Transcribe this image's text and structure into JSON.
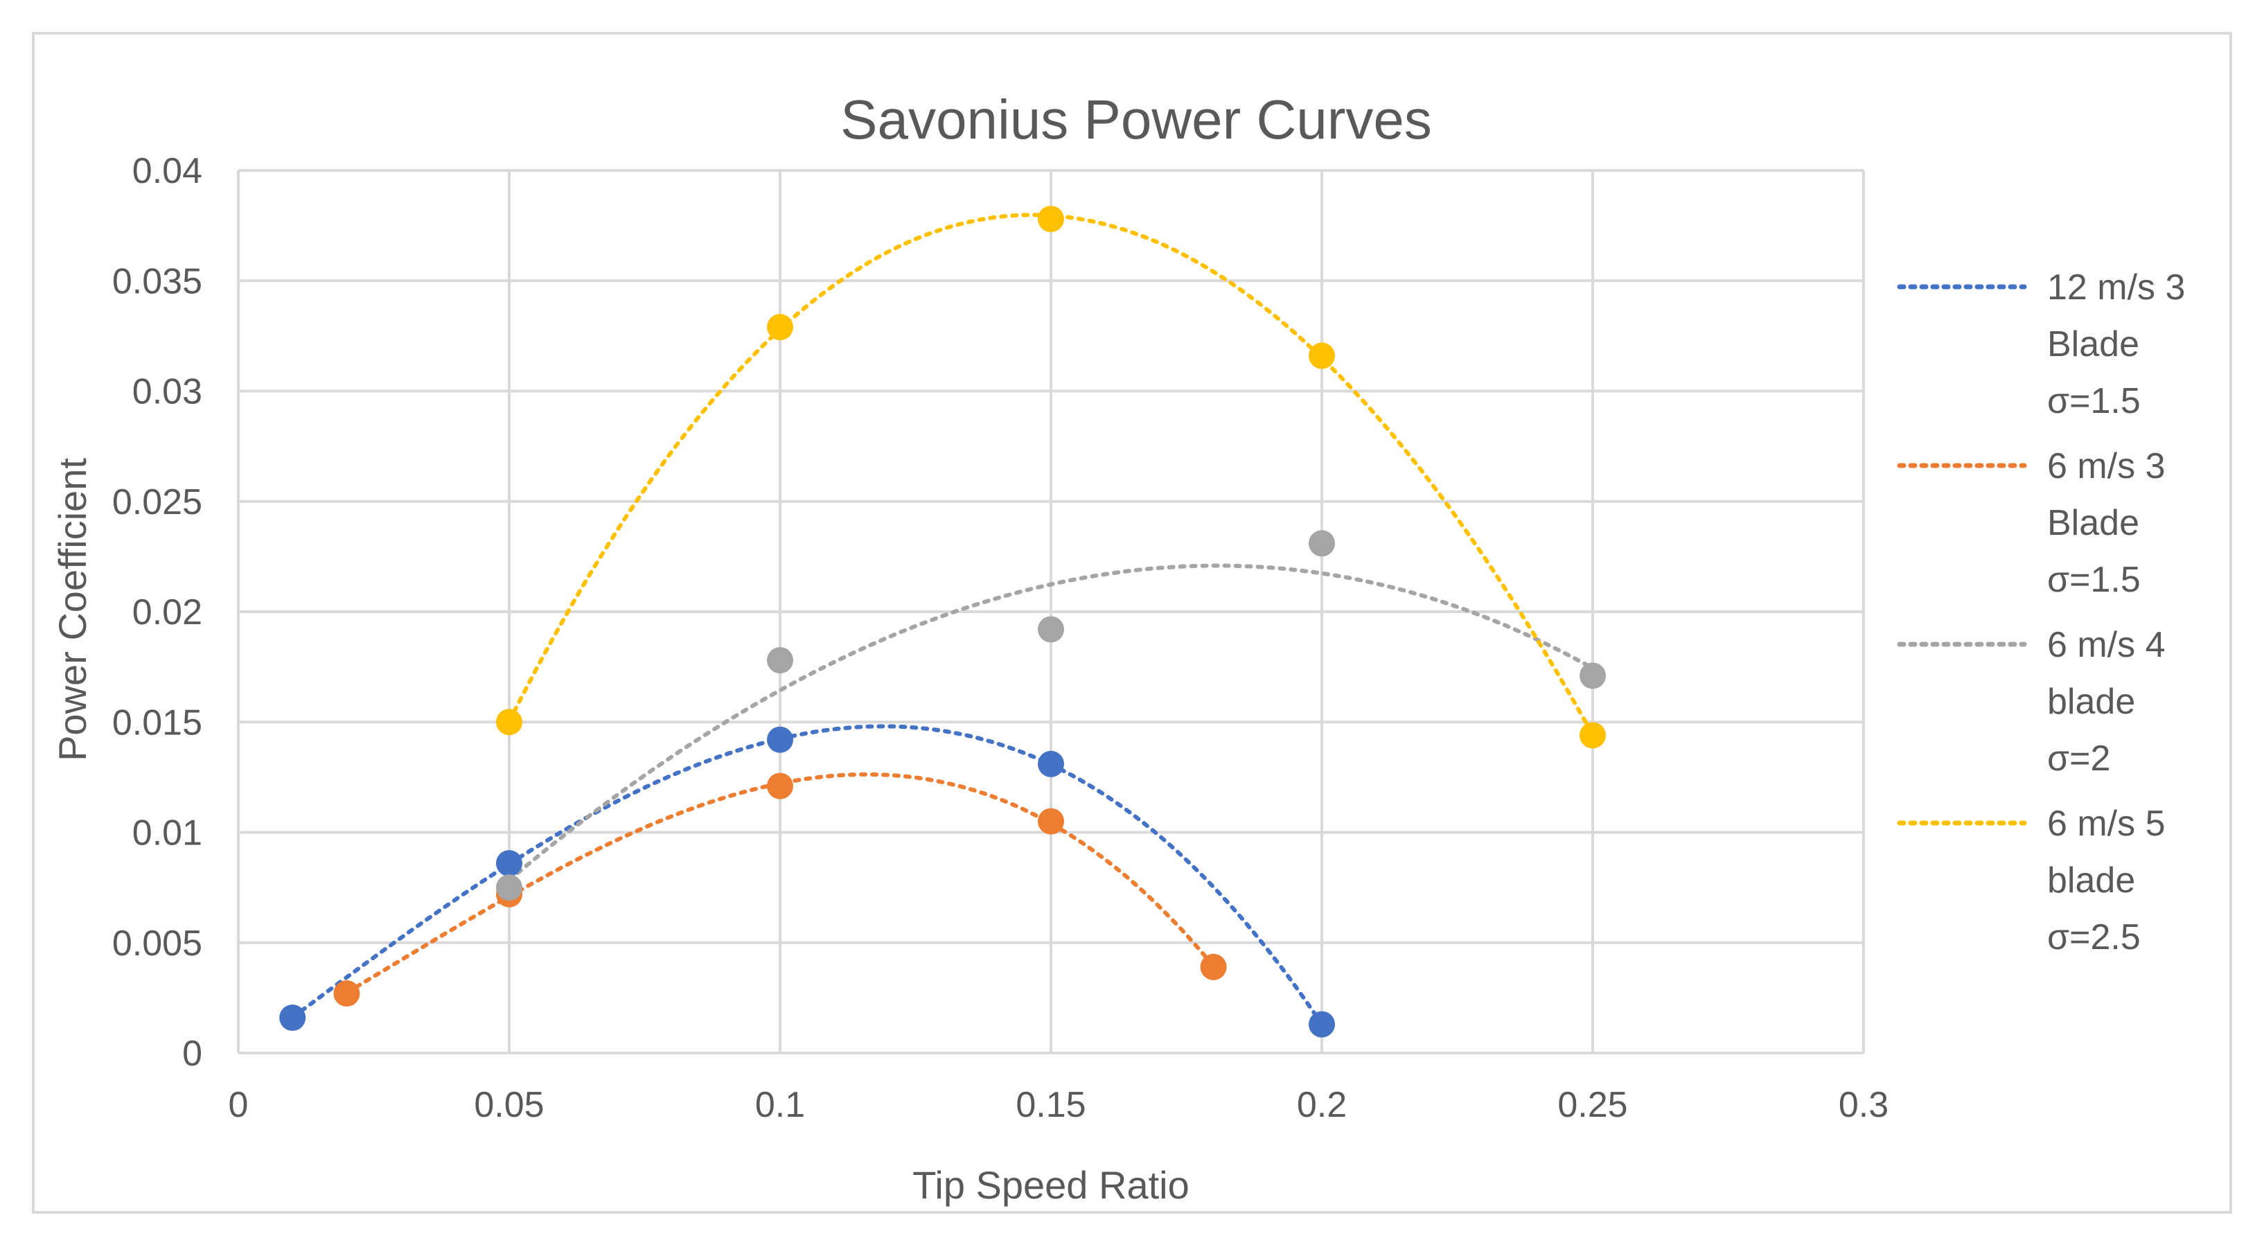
{
  "chart_data": {
    "type": "scatter",
    "title": "Savonius Power Curves",
    "xlabel": "Tip Speed Ratio",
    "ylabel": "Power Coefficient",
    "xlim": [
      0,
      0.3
    ],
    "ylim": [
      0,
      0.04
    ],
    "x_ticks": [
      0,
      0.05,
      0.1,
      0.15,
      0.2,
      0.25,
      0.3
    ],
    "x_tick_labels": [
      "0",
      "0.05",
      "0.1",
      "0.15",
      "0.2",
      "0.25",
      "0.3"
    ],
    "y_ticks": [
      0,
      0.005,
      0.01,
      0.015,
      0.02,
      0.025,
      0.03,
      0.035,
      0.04
    ],
    "y_tick_labels": [
      "0",
      "0.005",
      "0.01",
      "0.015",
      "0.02",
      "0.025",
      "0.03",
      "0.035",
      "0.04"
    ],
    "grid": true,
    "trendline": "dotted polynomial",
    "legend_position": "right",
    "series": [
      {
        "name": "12 m/s 3 Blade σ=1.5",
        "legend_lines": [
          "12 m/s 3",
          "Blade",
          "σ=1.5"
        ],
        "color": "#4472C4",
        "x": [
          0.01,
          0.05,
          0.1,
          0.15,
          0.2
        ],
        "y": [
          0.0016,
          0.0086,
          0.0142,
          0.0131,
          0.0013
        ]
      },
      {
        "name": "6 m/s 3 Blade σ=1.5",
        "legend_lines": [
          "6 m/s 3",
          "Blade",
          "σ=1.5"
        ],
        "color": "#ED7D31",
        "x": [
          0.02,
          0.05,
          0.1,
          0.15,
          0.18
        ],
        "y": [
          0.0027,
          0.0072,
          0.0121,
          0.0105,
          0.0039
        ]
      },
      {
        "name": "6 m/s 4 blade σ=2",
        "legend_lines": [
          "6 m/s 4",
          "blade",
          "σ=2"
        ],
        "color": "#A5A5A5",
        "x": [
          0.05,
          0.1,
          0.15,
          0.2,
          0.25
        ],
        "y": [
          0.0075,
          0.0178,
          0.0192,
          0.0231,
          0.0171
        ]
      },
      {
        "name": "6 m/s 5 blade σ=2.5",
        "legend_lines": [
          "6 m/s 5",
          "blade",
          "σ=2.5"
        ],
        "color": "#FFC000",
        "x": [
          0.05,
          0.1,
          0.15,
          0.2,
          0.25
        ],
        "y": [
          0.015,
          0.0329,
          0.0378,
          0.0316,
          0.0144
        ]
      }
    ]
  }
}
